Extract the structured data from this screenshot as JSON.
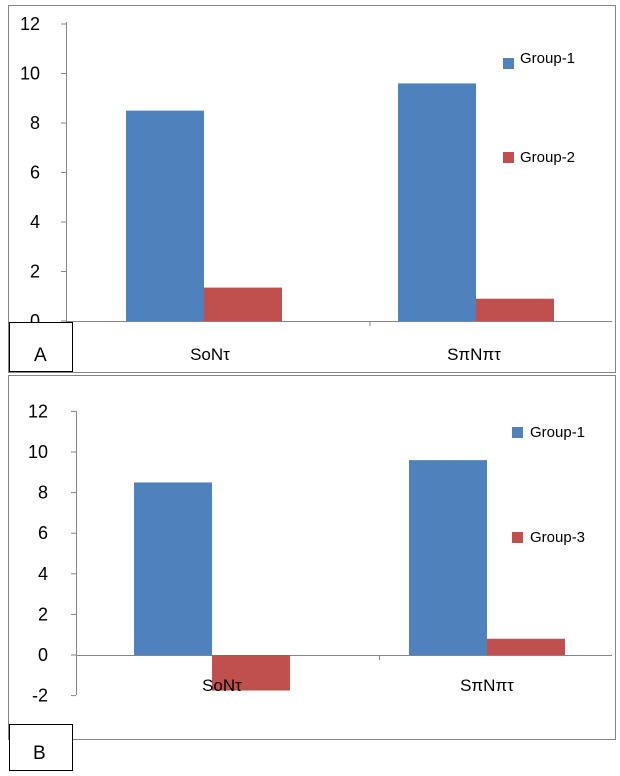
{
  "chart_data": [
    {
      "type": "bar",
      "panel_label": "A",
      "categories": [
        "SoNτ",
        "SπNπτ"
      ],
      "series": [
        {
          "name": "Group-1",
          "color": "#4F81BD",
          "values": [
            8.5,
            9.6
          ]
        },
        {
          "name": "Group-2",
          "color": "#C0504D",
          "values": [
            1.35,
            0.9
          ]
        }
      ],
      "ylim": [
        0,
        12
      ],
      "yticks": [
        0,
        2,
        4,
        6,
        8,
        10,
        12
      ],
      "legend": "right",
      "grid": false
    },
    {
      "type": "bar",
      "panel_label": "B",
      "categories": [
        "SoNτ",
        "SπNπτ"
      ],
      "series": [
        {
          "name": "Group-1",
          "color": "#4F81BD",
          "values": [
            8.5,
            9.6
          ]
        },
        {
          "name": "Group-3",
          "color": "#C0504D",
          "values": [
            -1.75,
            0.8
          ]
        }
      ],
      "ylim": [
        -2,
        12
      ],
      "yticks": [
        -2,
        0,
        2,
        4,
        6,
        8,
        10,
        12
      ],
      "legend": "right",
      "grid": false
    }
  ]
}
